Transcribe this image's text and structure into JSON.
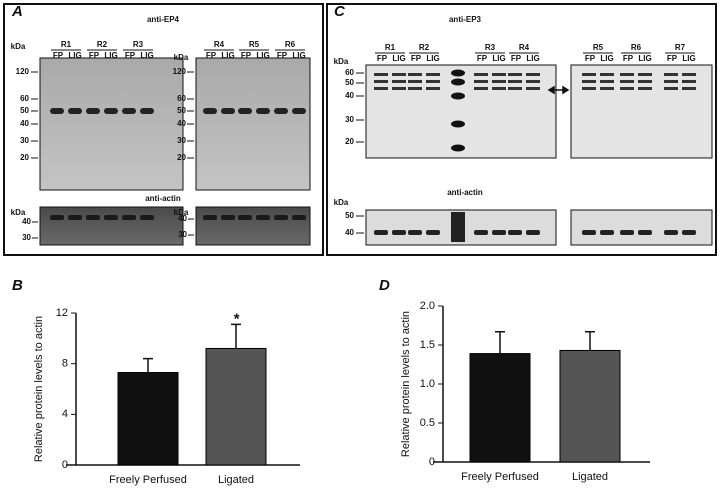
{
  "panel_a": {
    "label": "A",
    "antibody": "anti-EP4",
    "unit_left": "kDa",
    "markers_left": [
      120,
      60,
      50,
      40,
      30,
      20
    ],
    "unit_right": "kDa",
    "markers_right": [
      120,
      60,
      50,
      40,
      30,
      20
    ],
    "groups": [
      {
        "name": "R1",
        "lanes": [
          "FP",
          "LIG"
        ]
      },
      {
        "name": "R2",
        "lanes": [
          "FP",
          "LIG"
        ]
      },
      {
        "name": "R3",
        "lanes": [
          "FP",
          "LIG"
        ]
      },
      {
        "name": "R4",
        "lanes": [
          "FP",
          "LIG"
        ]
      },
      {
        "name": "R5",
        "lanes": [
          "FP",
          "LIG"
        ]
      },
      {
        "name": "R6",
        "lanes": [
          "FP",
          "LIG"
        ]
      }
    ],
    "actin": {
      "antibody": "anti-actin",
      "unit_left": "kDa",
      "markers_left": [
        40,
        30
      ],
      "unit_right": "kDa",
      "markers_right": [
        40,
        30
      ]
    }
  },
  "panel_c": {
    "label": "C",
    "antibody": "anti-EP3",
    "unit": "kDa",
    "markers": [
      60,
      50,
      40,
      30,
      20
    ],
    "groups": [
      {
        "name": "R1",
        "lanes": [
          "FP",
          "LIG"
        ]
      },
      {
        "name": "R2",
        "lanes": [
          "FP",
          "LIG"
        ]
      },
      {
        "name": "R3",
        "lanes": [
          "FP",
          "LIG"
        ]
      },
      {
        "name": "R4",
        "lanes": [
          "FP",
          "LIG"
        ]
      },
      {
        "name": "R5",
        "lanes": [
          "FP",
          "LIG"
        ]
      },
      {
        "name": "R6",
        "lanes": [
          "FP",
          "LIG"
        ]
      },
      {
        "name": "R7",
        "lanes": [
          "FP",
          "LIG"
        ]
      }
    ],
    "actin": {
      "antibody": "anti-actin",
      "unit": "kDa",
      "markers": [
        50,
        40
      ]
    }
  },
  "chart_data": [
    {
      "type": "bar",
      "panel_label": "B",
      "ylabel": "Relative protein levels to actin",
      "categories": [
        "Freely Perfused",
        "Ligated"
      ],
      "values": [
        7.3,
        9.2
      ],
      "errors": [
        1.1,
        1.9
      ],
      "colors": [
        "#111111",
        "#555555"
      ],
      "annotation": "*",
      "ylim": [
        0,
        12
      ],
      "yticks": [
        0,
        4,
        8,
        12
      ]
    },
    {
      "type": "bar",
      "panel_label": "D",
      "ylabel": "Relative protein levels to actin",
      "categories": [
        "Freely Perfused",
        "Ligated"
      ],
      "values": [
        1.39,
        1.43
      ],
      "errors": [
        0.28,
        0.24
      ],
      "colors": [
        "#111111",
        "#555555"
      ],
      "ylim": [
        0,
        2
      ],
      "yticks": [
        0,
        0.5,
        {
          "value": 1,
          "label": "1.0"
        },
        1.5,
        {
          "value": 2,
          "label": "2.0"
        }
      ]
    }
  ]
}
